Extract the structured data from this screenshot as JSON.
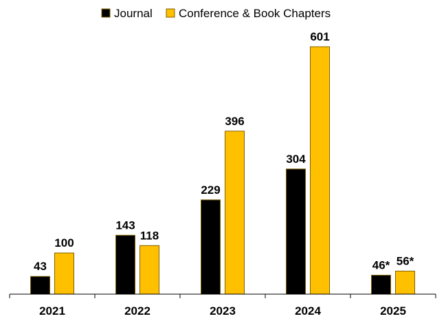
{
  "chart_data": {
    "type": "bar",
    "categories": [
      "2021",
      "2022",
      "2023",
      "2024",
      "2025"
    ],
    "series": [
      {
        "name": "Journal",
        "values": [
          43,
          143,
          229,
          304,
          46
        ],
        "labels": [
          "43",
          "143",
          "229",
          "304",
          "46*"
        ],
        "color": "#000000"
      },
      {
        "name": "Conference & Book Chapters",
        "values": [
          100,
          118,
          396,
          601,
          56
        ],
        "labels": [
          "100",
          "118",
          "396",
          "601",
          "56*"
        ],
        "color": "#FFC000"
      }
    ],
    "title": "",
    "xlabel": "",
    "ylabel": "",
    "ylim": [
      0,
      600
    ],
    "grid": false,
    "legend": "top-center",
    "edge_color": "#7F6000",
    "axis_color": "#000000"
  }
}
